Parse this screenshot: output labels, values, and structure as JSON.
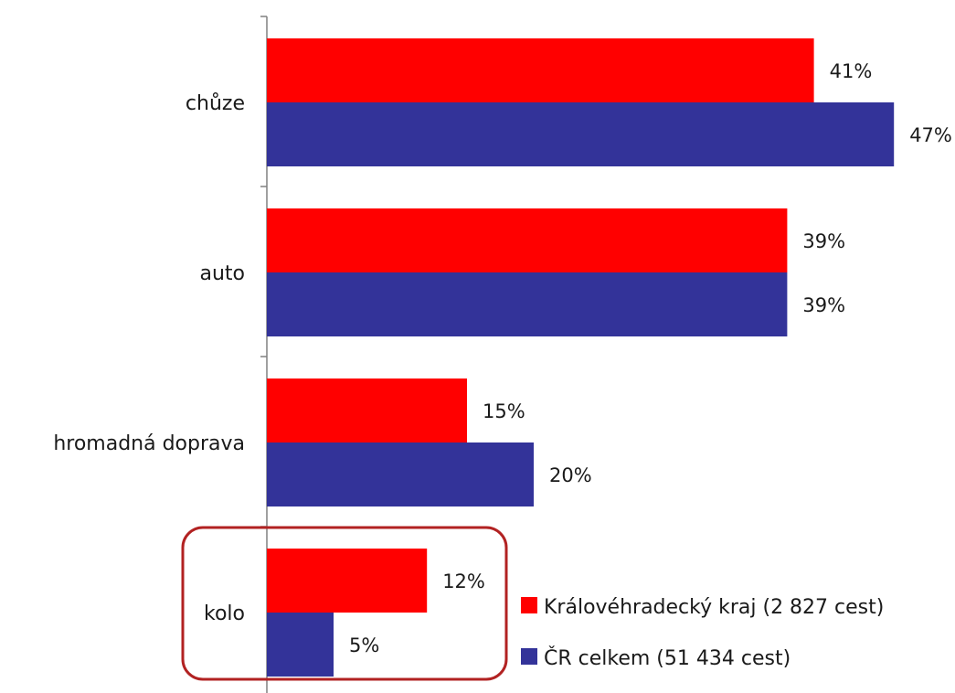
{
  "chart_data": {
    "type": "bar",
    "orientation": "horizontal",
    "categories": [
      "chůze",
      "auto",
      "hromadná doprava",
      "kolo"
    ],
    "series": [
      {
        "name": "Královéhradecký kraj (2 827 cest)",
        "values": [
          41,
          39,
          15,
          12
        ],
        "labels": [
          "41%",
          "39%",
          "15%",
          "12%"
        ],
        "color": "#ff0000"
      },
      {
        "name": "ČR celkem (51 434 cest)",
        "values": [
          47,
          39,
          20,
          5
        ],
        "labels": [
          "47%",
          "39%",
          "20%",
          "5%"
        ],
        "color": "#333399"
      }
    ],
    "xlim": [
      0,
      50
    ],
    "grid": false,
    "legend_position": "bottom-right",
    "highlight_category": "kolo",
    "highlight_color": "#b22222"
  }
}
